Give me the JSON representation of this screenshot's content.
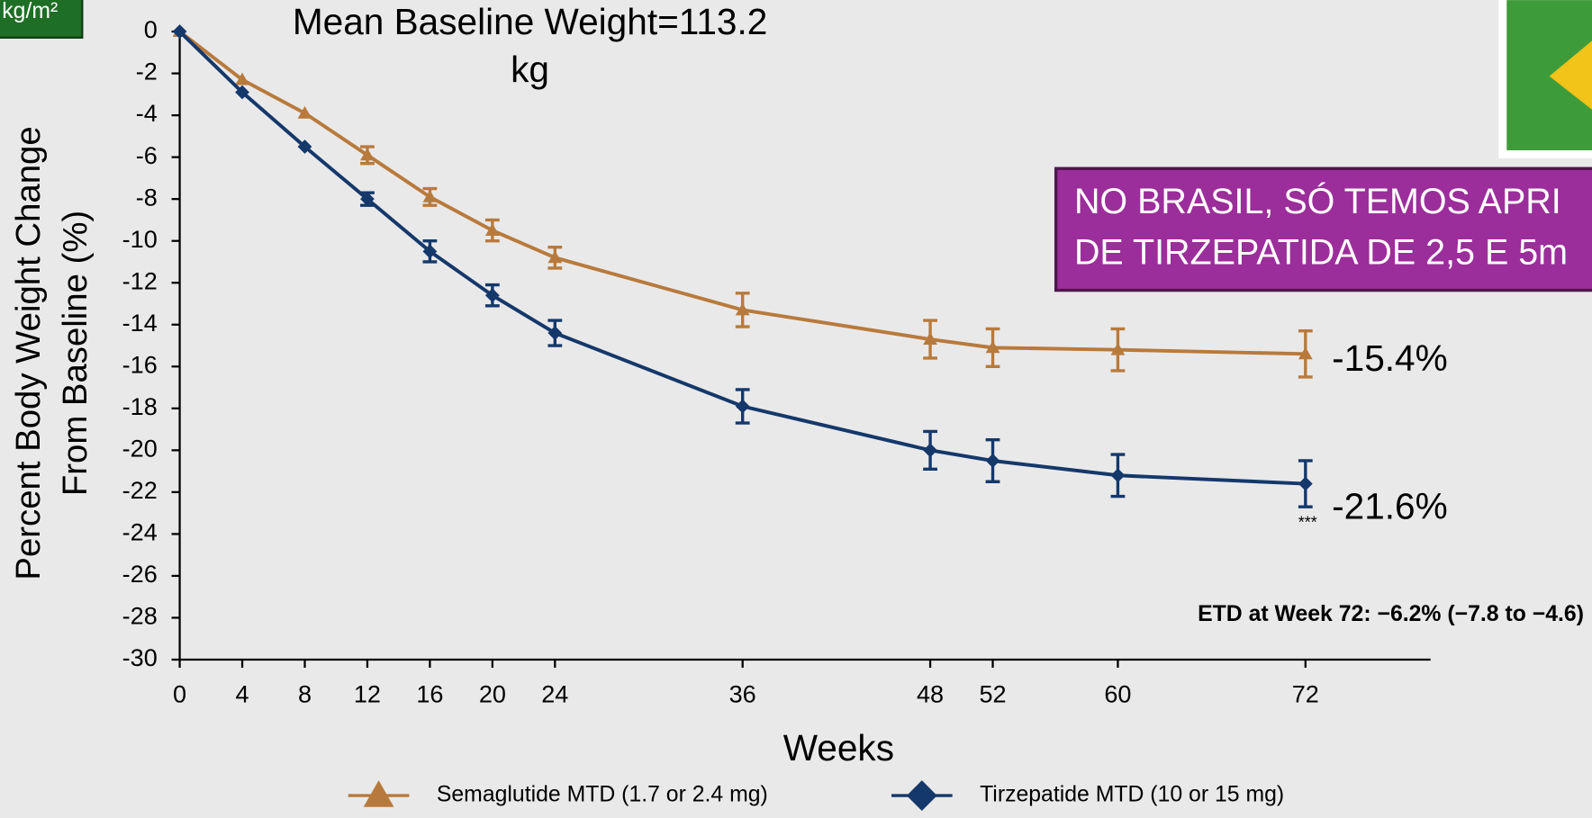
{
  "badge": "kg/m²",
  "notice": [
    "NO BRASIL, SÓ TEMOS APRI",
    "DE TIRZEPATIDA DE 2,5 E 5m"
  ],
  "chart_data": {
    "type": "line",
    "title": [
      "Mean Baseline Weight=113.2",
      "kg"
    ],
    "xlabel": "Weeks",
    "ylabel": [
      "Percent  Body Weight Change",
      "From Baseline (%)"
    ],
    "x": [
      0,
      4,
      8,
      12,
      16,
      20,
      24,
      36,
      48,
      52,
      60,
      72
    ],
    "series": [
      {
        "name": "Semaglutide MTD (1.7 or 2.4 mg)",
        "color": "#b87a3c",
        "marker": "triangle",
        "values": [
          0,
          -2.3,
          -3.9,
          -5.9,
          -7.9,
          -9.5,
          -10.8,
          -13.3,
          -14.7,
          -15.1,
          -15.2,
          -15.4
        ],
        "errors": [
          null,
          null,
          null,
          0.4,
          0.4,
          0.5,
          0.5,
          0.8,
          0.9,
          0.9,
          1.0,
          1.1
        ],
        "value_labels": [
          null,
          null,
          null,
          null,
          null,
          null,
          null,
          null,
          null,
          null,
          null,
          "-15.4%"
        ]
      },
      {
        "name": "Tirzepatide MTD (10 or 15 mg)",
        "color": "#15386b",
        "marker": "diamond",
        "values": [
          0,
          -2.9,
          -5.5,
          -8.0,
          -10.5,
          -12.6,
          -14.4,
          -17.9,
          -20.0,
          -20.5,
          -21.2,
          -21.6
        ],
        "errors": [
          null,
          null,
          null,
          0.3,
          0.5,
          0.5,
          0.6,
          0.8,
          0.9,
          1.0,
          1.0,
          1.1
        ],
        "value_labels": [
          null,
          null,
          null,
          null,
          null,
          null,
          null,
          null,
          null,
          null,
          null,
          "-21.6%"
        ]
      }
    ],
    "annotations": [
      "***",
      "ETD at Week 72: −6.2% (−7.8 to −4.6)"
    ],
    "xlim": [
      0,
      80
    ],
    "ylim": [
      -30,
      0
    ],
    "xticks": [
      0,
      4,
      8,
      12,
      16,
      20,
      24,
      36,
      48,
      52,
      60,
      72
    ],
    "yticks": [
      0,
      -2,
      -4,
      -6,
      -8,
      -10,
      -12,
      -14,
      -16,
      -18,
      -20,
      -22,
      -24,
      -26,
      -28,
      -30
    ]
  }
}
